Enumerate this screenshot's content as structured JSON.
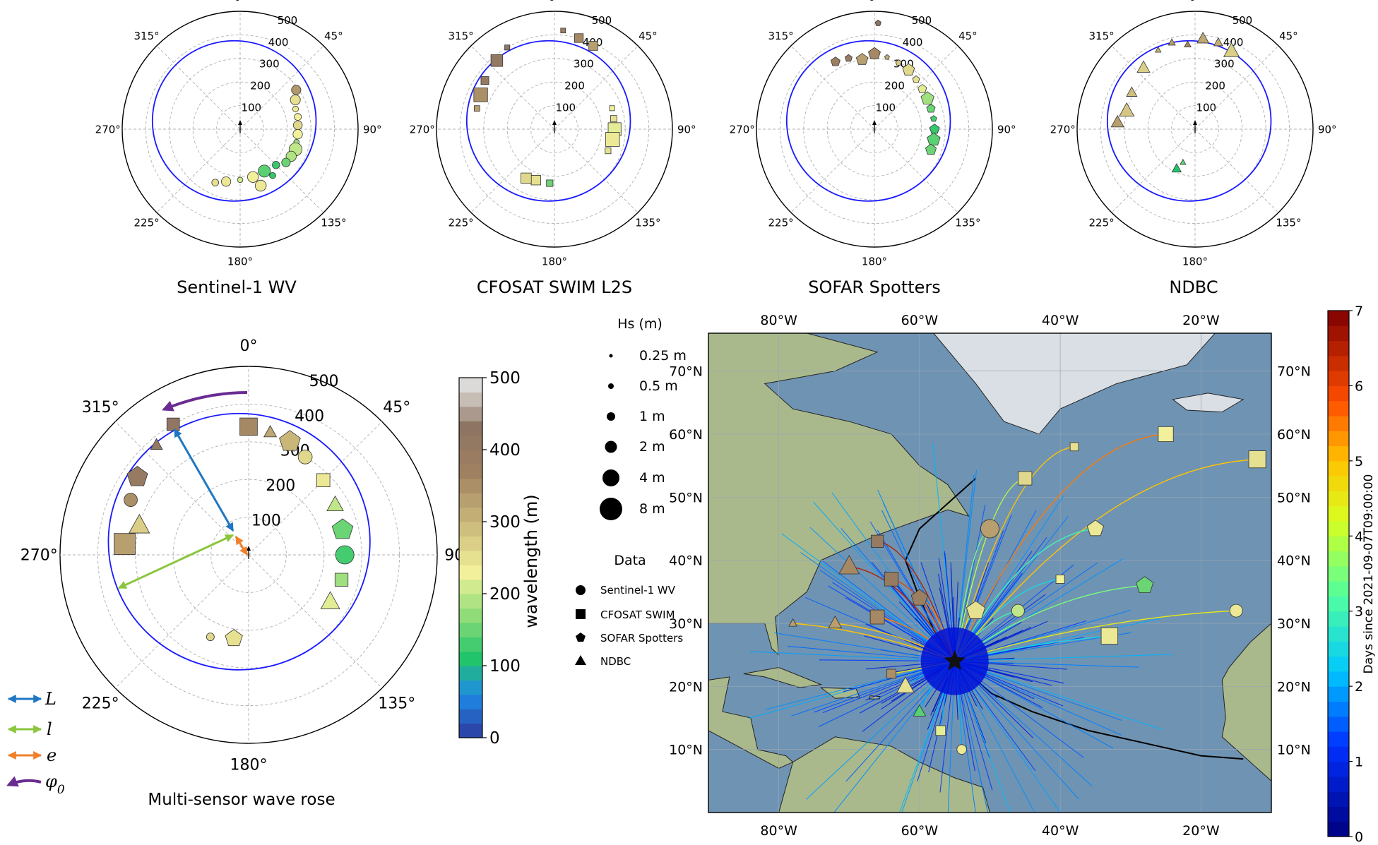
{
  "small_roses": [
    {
      "title": "Sentinel-1 WV",
      "marker": "circle"
    },
    {
      "title": "CFOSAT SWIM L2S",
      "marker": "square"
    },
    {
      "title": "SOFAR Spotters",
      "marker": "pentagon"
    },
    {
      "title": "NDBC",
      "marker": "triangle"
    }
  ],
  "rose_axes": {
    "angle_labels": [
      "0°",
      "45°",
      "90°",
      "135°",
      "180°",
      "225°",
      "270°",
      "315°"
    ],
    "radial_ticks": [
      100,
      200,
      300,
      400,
      500
    ],
    "radial_max": 500
  },
  "big_rose": {
    "title": "Multi-sensor wave rose",
    "legend": [
      {
        "symbol": "L",
        "color": "#1f77c4"
      },
      {
        "symbol": "l",
        "color": "#8cc63f"
      },
      {
        "symbol": "e",
        "color": "#f0802a"
      },
      {
        "symbol": "φ",
        "subscript": "0",
        "color": "#6a2c91"
      }
    ]
  },
  "wavelength_colorbar": {
    "label": "wavelength (m)",
    "ticks": [
      0,
      100,
      200,
      300,
      400,
      500
    ],
    "range": [
      0,
      500
    ]
  },
  "map": {
    "lon_labels": [
      "80°W",
      "60°W",
      "40°W",
      "20°W"
    ],
    "lat_labels": [
      "10°N",
      "20°N",
      "30°N",
      "40°N",
      "50°N",
      "60°N",
      "70°N"
    ],
    "lon_range": [
      -90,
      -10
    ],
    "lat_range": [
      0,
      76
    ],
    "storm_center": {
      "lon": -55,
      "lat": 24
    }
  },
  "hs_legend": {
    "title": "Hs (m)",
    "items": [
      "0.25 m",
      "0.5 m",
      "1 m",
      "2 m",
      "4 m",
      "8 m"
    ]
  },
  "data_legend": {
    "title": "Data",
    "items": [
      {
        "label": "Sentinel-1 WV",
        "marker": "circle"
      },
      {
        "label": "CFOSAT SWIM",
        "marker": "square"
      },
      {
        "label": "SOFAR Spotters",
        "marker": "pentagon"
      },
      {
        "label": "NDBC",
        "marker": "triangle"
      }
    ]
  },
  "time_colorbar": {
    "label": "Days since 2021-09-07T09:00:00",
    "ticks": [
      0,
      1,
      2,
      3,
      4,
      5,
      6,
      7
    ],
    "range": [
      0,
      7
    ]
  },
  "colors": {
    "ellipse": "#1a1aff",
    "ocean": "#6f93b3",
    "land": "#a9b98c",
    "ice": "#d9dfe4"
  },
  "chart_data": [
    {
      "type": "scatter",
      "projection": "polar",
      "title": "Sentinel-1 WV",
      "rlim": [
        0,
        500
      ],
      "points": [
        {
          "theta": 55,
          "r": 290,
          "wl": 340
        },
        {
          "theta": 62,
          "r": 265,
          "wl": 250
        },
        {
          "theta": 70,
          "r": 250,
          "wl": 240
        },
        {
          "theta": 78,
          "r": 250,
          "wl": 230
        },
        {
          "theta": 86,
          "r": 245,
          "wl": 260
        },
        {
          "theta": 95,
          "r": 245,
          "wl": 230
        },
        {
          "theta": 103,
          "r": 245,
          "wl": 180
        },
        {
          "theta": 110,
          "r": 250,
          "wl": 200
        },
        {
          "theta": 118,
          "r": 245,
          "wl": 190
        },
        {
          "theta": 126,
          "r": 240,
          "wl": 150
        },
        {
          "theta": 135,
          "r": 215,
          "wl": 120
        },
        {
          "theta": 150,
          "r": 205,
          "wl": 140
        },
        {
          "theta": 165,
          "r": 210,
          "wl": 230
        },
        {
          "theta": 180,
          "r": 215,
          "wl": 210
        },
        {
          "theta": 195,
          "r": 230,
          "wl": 240
        },
        {
          "theta": 205,
          "r": 250,
          "wl": 250
        },
        {
          "theta": 160,
          "r": 255,
          "wl": 240
        },
        {
          "theta": 145,
          "r": 240,
          "wl": 120
        }
      ]
    },
    {
      "type": "scatter",
      "projection": "polar",
      "title": "CFOSAT SWIM L2S",
      "rlim": [
        0,
        500
      ],
      "points": [
        {
          "theta": 5,
          "r": 420,
          "wl": 380
        },
        {
          "theta": 15,
          "r": 400,
          "wl": 360
        },
        {
          "theta": 25,
          "r": 390,
          "wl": 330
        },
        {
          "theta": 330,
          "r": 400,
          "wl": 420
        },
        {
          "theta": 320,
          "r": 380,
          "wl": 410
        },
        {
          "theta": 305,
          "r": 360,
          "wl": 400
        },
        {
          "theta": 295,
          "r": 345,
          "wl": 350
        },
        {
          "theta": 285,
          "r": 340,
          "wl": 330
        },
        {
          "theta": 70,
          "r": 260,
          "wl": 230
        },
        {
          "theta": 80,
          "r": 255,
          "wl": 250
        },
        {
          "theta": 90,
          "r": 255,
          "wl": 220
        },
        {
          "theta": 100,
          "r": 250,
          "wl": 240
        },
        {
          "theta": 112,
          "r": 245,
          "wl": 250
        },
        {
          "theta": 200,
          "r": 230,
          "wl": 250
        },
        {
          "theta": 210,
          "r": 240,
          "wl": 260
        },
        {
          "theta": 185,
          "r": 230,
          "wl": 150
        }
      ]
    },
    {
      "type": "scatter",
      "projection": "polar",
      "title": "SOFAR Spotters",
      "rlim": [
        0,
        500
      ],
      "points": [
        {
          "theta": 330,
          "r": 330,
          "wl": 380
        },
        {
          "theta": 340,
          "r": 320,
          "wl": 390
        },
        {
          "theta": 350,
          "r": 300,
          "wl": 330
        },
        {
          "theta": 0,
          "r": 320,
          "wl": 360
        },
        {
          "theta": 10,
          "r": 310,
          "wl": 310
        },
        {
          "theta": 20,
          "r": 300,
          "wl": 280
        },
        {
          "theta": 30,
          "r": 290,
          "wl": 260
        },
        {
          "theta": 40,
          "r": 275,
          "wl": 250
        },
        {
          "theta": 50,
          "r": 265,
          "wl": 220
        },
        {
          "theta": 60,
          "r": 260,
          "wl": 180
        },
        {
          "theta": 70,
          "r": 255,
          "wl": 150
        },
        {
          "theta": 80,
          "r": 255,
          "wl": 130
        },
        {
          "theta": 90,
          "r": 255,
          "wl": 120
        },
        {
          "theta": 100,
          "r": 255,
          "wl": 140
        },
        {
          "theta": 110,
          "r": 255,
          "wl": 150
        },
        {
          "theta": 2,
          "r": 450,
          "wl": 430
        }
      ]
    },
    {
      "type": "scatter",
      "projection": "polar",
      "title": "NDBC",
      "rlim": [
        0,
        500
      ],
      "points": [
        {
          "theta": 335,
          "r": 370,
          "wl": 300
        },
        {
          "theta": 345,
          "r": 380,
          "wl": 330
        },
        {
          "theta": 355,
          "r": 360,
          "wl": 360
        },
        {
          "theta": 5,
          "r": 385,
          "wl": 320
        },
        {
          "theta": 15,
          "r": 380,
          "wl": 310
        },
        {
          "theta": 25,
          "r": 365,
          "wl": 270
        },
        {
          "theta": 320,
          "r": 340,
          "wl": 270
        },
        {
          "theta": 300,
          "r": 310,
          "wl": 290
        },
        {
          "theta": 285,
          "r": 300,
          "wl": 280
        },
        {
          "theta": 275,
          "r": 330,
          "wl": 330
        },
        {
          "theta": 200,
          "r": 150,
          "wl": 140
        },
        {
          "theta": 205,
          "r": 185,
          "wl": 110
        }
      ]
    },
    {
      "type": "scatter",
      "projection": "polar",
      "title": "Multi-sensor wave rose",
      "rlim": [
        0,
        500
      ],
      "points": [
        {
          "theta": 330,
          "r": 400,
          "wl": 420
        },
        {
          "theta": 320,
          "r": 380,
          "wl": 410
        },
        {
          "theta": 305,
          "r": 360,
          "wl": 400
        },
        {
          "theta": 295,
          "r": 345,
          "wl": 350
        },
        {
          "theta": 0,
          "r": 340,
          "wl": 360
        },
        {
          "theta": 10,
          "r": 330,
          "wl": 320
        },
        {
          "theta": 20,
          "r": 320,
          "wl": 300
        },
        {
          "theta": 30,
          "r": 300,
          "wl": 260
        },
        {
          "theta": 45,
          "r": 280,
          "wl": 240
        },
        {
          "theta": 60,
          "r": 265,
          "wl": 200
        },
        {
          "theta": 75,
          "r": 258,
          "wl": 150
        },
        {
          "theta": 90,
          "r": 255,
          "wl": 130
        },
        {
          "theta": 105,
          "r": 255,
          "wl": 180
        },
        {
          "theta": 120,
          "r": 250,
          "wl": 220
        },
        {
          "theta": 190,
          "r": 225,
          "wl": 250
        },
        {
          "theta": 205,
          "r": 240,
          "wl": 260
        },
        {
          "theta": 275,
          "r": 330,
          "wl": 330
        },
        {
          "theta": 285,
          "r": 300,
          "wl": 270
        }
      ]
    },
    {
      "type": "scatter",
      "projection": "map",
      "title": "",
      "xlim": [
        -90,
        -10
      ],
      "ylim": [
        0,
        76
      ],
      "points": [
        {
          "lon": -66,
          "lat": 43,
          "t": 6.5,
          "wl": 400,
          "marker": "square"
        },
        {
          "lon": -70,
          "lat": 39,
          "t": 6.5,
          "wl": 360,
          "marker": "triangle"
        },
        {
          "lon": -64,
          "lat": 37,
          "t": 6.0,
          "wl": 400,
          "marker": "square"
        },
        {
          "lon": -60,
          "lat": 34,
          "t": 5.5,
          "wl": 380,
          "marker": "pentagon"
        },
        {
          "lon": -66,
          "lat": 31,
          "t": 5.5,
          "wl": 360,
          "marker": "square"
        },
        {
          "lon": -72,
          "lat": 30,
          "t": 5.0,
          "wl": 330,
          "marker": "triangle"
        },
        {
          "lon": -78,
          "lat": 30,
          "t": 5.0,
          "wl": 330,
          "marker": "triangle"
        },
        {
          "lon": -64,
          "lat": 22,
          "t": 4.5,
          "wl": 350,
          "marker": "square"
        },
        {
          "lon": -52,
          "lat": 32,
          "t": 3.5,
          "wl": 250,
          "marker": "pentagon"
        },
        {
          "lon": -46,
          "lat": 32,
          "t": 3.0,
          "wl": 200,
          "marker": "circle"
        },
        {
          "lon": -40,
          "lat": 37,
          "t": 2.5,
          "wl": 230,
          "marker": "square"
        },
        {
          "lon": -33,
          "lat": 28,
          "t": 2.5,
          "wl": 240,
          "marker": "square"
        },
        {
          "lon": -45,
          "lat": 53,
          "t": 4.0,
          "wl": 260,
          "marker": "square"
        },
        {
          "lon": -28,
          "lat": 36,
          "t": 3.5,
          "wl": 150,
          "marker": "pentagon"
        },
        {
          "lon": -38,
          "lat": 58,
          "t": 5.0,
          "wl": 250,
          "marker": "square"
        },
        {
          "lon": -25,
          "lat": 60,
          "t": 5.5,
          "wl": 230,
          "marker": "square"
        },
        {
          "lon": -12,
          "lat": 56,
          "t": 5.0,
          "wl": 250,
          "marker": "square"
        },
        {
          "lon": -15,
          "lat": 32,
          "t": 4.5,
          "wl": 240,
          "marker": "circle"
        },
        {
          "lon": -57,
          "lat": 13,
          "t": 2.0,
          "wl": 220,
          "marker": "square"
        },
        {
          "lon": -60,
          "lat": 16,
          "t": 2.0,
          "wl": 140,
          "marker": "triangle"
        },
        {
          "lon": -54,
          "lat": 10,
          "t": 2.0,
          "wl": 240,
          "marker": "circle"
        },
        {
          "lon": -62,
          "lat": 20,
          "t": 2.0,
          "wl": 250,
          "marker": "triangle"
        },
        {
          "lon": -50,
          "lat": 45,
          "t": 3.5,
          "wl": 330,
          "marker": "circle"
        },
        {
          "lon": -35,
          "lat": 45,
          "t": 3.0,
          "wl": 240,
          "marker": "pentagon"
        }
      ]
    }
  ]
}
